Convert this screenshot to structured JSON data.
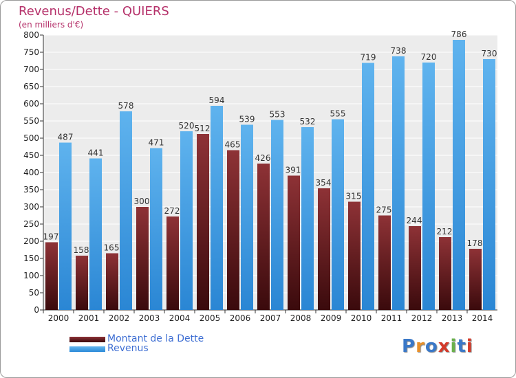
{
  "title": "Revenus/Dette - QUIERS",
  "subtitle": "(en milliers d'€)",
  "chart_data": {
    "type": "bar",
    "categories": [
      "2000",
      "2001",
      "2002",
      "2003",
      "2004",
      "2005",
      "2006",
      "2007",
      "2008",
      "2009",
      "2010",
      "2011",
      "2012",
      "2013",
      "2014"
    ],
    "series": [
      {
        "name": "Montant de la Dette",
        "color": "#6e1a1e",
        "values": [
          197,
          158,
          165,
          300,
          272,
          512,
          465,
          426,
          391,
          354,
          315,
          275,
          244,
          212,
          178
        ],
        "labels": [
          "197",
          "158",
          "165",
          "300",
          "272",
          "512",
          "465",
          "426",
          "391",
          "354",
          "315",
          "275",
          "244",
          "212",
          "178"
        ]
      },
      {
        "name": "Revenus",
        "color": "#3d9ae4",
        "values": [
          487,
          441,
          578,
          471,
          520,
          594,
          539,
          553,
          532,
          555,
          719,
          738,
          720,
          786,
          730
        ],
        "labels": [
          "487",
          "441",
          "578",
          "471",
          "520",
          "594",
          "539",
          "553",
          "532",
          "555",
          "719",
          "738",
          "720",
          "786",
          "730"
        ]
      }
    ],
    "yticks": [
      "0",
      "50",
      "100",
      "150",
      "200",
      "250",
      "300",
      "350",
      "400",
      "450",
      "500",
      "550",
      "600",
      "650",
      "700",
      "750",
      "800"
    ],
    "ylim": [
      0,
      800
    ],
    "grid": true,
    "legend": "bottom-left"
  },
  "logo": {
    "text": "Proxiti",
    "letters": [
      "P",
      "r",
      "o",
      "x",
      "i",
      "t",
      "i"
    ],
    "colors": [
      "#3a78c8",
      "#e8902a",
      "#3a78c8",
      "#d43a2a",
      "#6ab04c",
      "#3a78c8",
      "#d43a2a"
    ]
  }
}
